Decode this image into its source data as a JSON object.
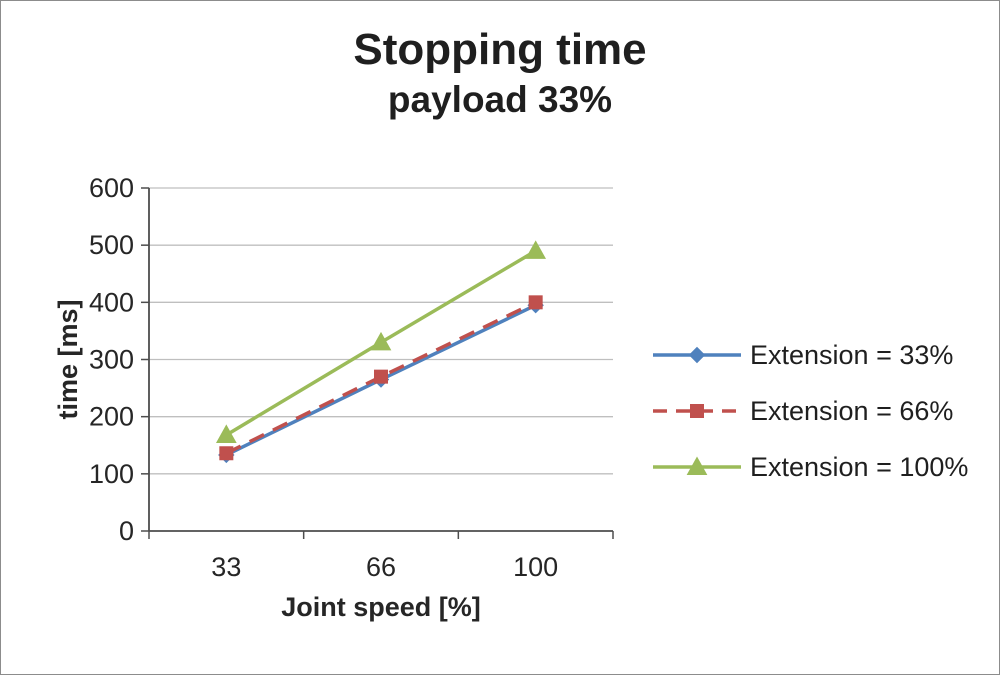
{
  "chart_data": {
    "type": "line",
    "title": "Stopping time",
    "subtitle": "payload 33%",
    "xlabel": "Joint speed [%]",
    "ylabel": "time [ms]",
    "categories": [
      "33",
      "66",
      "100"
    ],
    "series": [
      {
        "name": "Extension = 33%",
        "values": [
          133,
          265,
          395
        ],
        "color": "#4F81BD",
        "marker": "diamond",
        "dash": "solid"
      },
      {
        "name": "Extension = 66%",
        "values": [
          136,
          270,
          400
        ],
        "color": "#C0504D",
        "marker": "square",
        "dash": "dashed"
      },
      {
        "name": "Extension = 100%",
        "values": [
          168,
          330,
          490
        ],
        "color": "#9BBB59",
        "marker": "triangle",
        "dash": "solid"
      }
    ],
    "ylim": [
      0,
      600
    ],
    "ytick_step": 100,
    "yticks": [
      "0",
      "100",
      "200",
      "300",
      "400",
      "500",
      "600"
    ],
    "grid": true,
    "legend_position": "right",
    "colors": {
      "gridline": "#bfbfbf",
      "axis": "#4d4d4d",
      "text": "#262626"
    }
  }
}
